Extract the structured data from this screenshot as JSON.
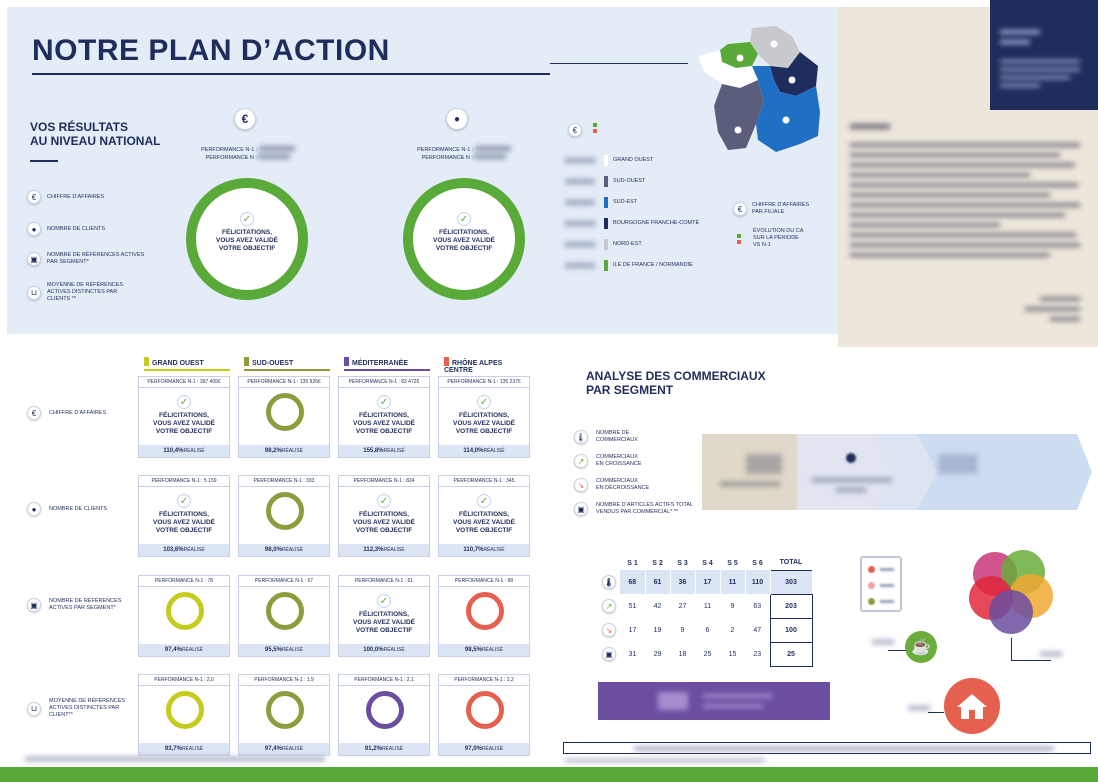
{
  "page": {
    "title": "NOTRE PLAN D’ACTION",
    "national": {
      "heading_line1": "VOS RÉSULTATS",
      "heading_line2": "AU NIVEAU NATIONAL",
      "indicators": [
        {
          "icon": "euro-icon",
          "label": "CHIFFRE D’AFFAIRES"
        },
        {
          "icon": "user-icon",
          "label": "NOMBRE DE CLIENTS"
        },
        {
          "icon": "box-icon",
          "label_line1": "NOMBRE DE RÉFÉRENCES ACTIVES",
          "label_line2": "PAR SEGMENT*"
        },
        {
          "icon": "basket-icon",
          "label_line1": "MOYENNE DE RÉFÉRENCES",
          "label_line2": "ACTIVES DISTINCTES PAR",
          "label_line3": "CLIENTS **"
        }
      ],
      "gauges": [
        {
          "icon": "euro-icon",
          "icon_glyph": "€",
          "line1": "PERFORMANCE N-1 :",
          "line2": "PERFORMANCE N :",
          "msg1": "FÉLICITATIONS,",
          "msg2": "VOUS AVEZ VALIDÉ",
          "msg3": "VOTRE OBJECTIF"
        },
        {
          "icon": "user-icon",
          "icon_glyph": "👤",
          "line1": "PERFORMANCE N-1 :",
          "line2": "PERFORMANCE N :",
          "msg1": "FÉLICITATIONS,",
          "msg2": "VOUS AVEZ VALIDÉ",
          "msg3": "VOTRE OBJECTIF"
        }
      ]
    },
    "map": {
      "legend": [
        {
          "label": "GRAND OUEST",
          "color": "#ffffff"
        },
        {
          "label": "SUD-OUEST",
          "color": "#5a5e7a"
        },
        {
          "label": "SUD-EST",
          "color": "#1f6fc4"
        },
        {
          "label": "BOURGOGNE FRANCHE-COMTÉ",
          "color": "#1f2d5c"
        },
        {
          "label": "NORD-EST",
          "color": "#c7c9cc"
        },
        {
          "label": "ILE DE FRANCE / NORMANDIE",
          "color": "#5aaa3a"
        }
      ],
      "side_legend": [
        {
          "label_line1": "CHIFFRE D’AFFAIRES",
          "label_line2": "PAR FILIALE"
        },
        {
          "label_line1": "ÉVOLUTION DU CA",
          "label_line2": "SUR LA PÉRIODE",
          "label_line3": "VS N-1"
        }
      ]
    },
    "regions": {
      "headers": [
        {
          "label": "GRAND OUEST",
          "color": "#c6cc1e"
        },
        {
          "label": "SUD-OUEST",
          "color": "#8d9d3e"
        },
        {
          "label": "MÉDITERRANÉE",
          "color": "#6b4ea0"
        },
        {
          "label": "RHÔNE ALPES CENTRE",
          "color": "#e5604e"
        }
      ],
      "row_labels": [
        {
          "icon": "euro-icon",
          "line1": "CHIFFRE D’AFFAIRES",
          "line2": ""
        },
        {
          "icon": "user-icon",
          "line1": "NOMBRE DE CLIENTS",
          "line2": ""
        },
        {
          "icon": "box-icon",
          "line1": "NOMBRE DE RÉFÉRENCES",
          "line2": "ACTIVES PAR SEGMENT*"
        },
        {
          "icon": "basket-icon",
          "line1": "MOYENNE DE RÉFÉRENCES",
          "line2": "ACTIVES DISTINCTES PAR",
          "line3": "CLIENT**"
        }
      ],
      "rows": [
        [
          {
            "perf": "PERFORMANCE N-1 : 397 405€",
            "status": "ok",
            "value": "110,4%",
            "suffix": "RÉALISÉ"
          },
          {
            "perf": "PERFORMANCE N-1 : 135 926€",
            "status": "ring",
            "color": "#8d9d3e",
            "value": "98,2%",
            "suffix": "RÉALISÉ"
          },
          {
            "perf": "PERFORMANCE N-1 : 83 472€",
            "status": "ok",
            "value": "155,8%",
            "suffix": "RÉALISÉ"
          },
          {
            "perf": "PERFORMANCE N-1 : 135 237€",
            "status": "ok",
            "value": "114,0%",
            "suffix": "RÉALISÉ"
          }
        ],
        [
          {
            "perf": "PERFORMANCE N-1 : 5 159",
            "status": "ok",
            "value": "103,6%",
            "suffix": "RÉALISÉ"
          },
          {
            "perf": "PERFORMANCE N-1 : 333",
            "status": "ring",
            "color": "#8d9d3e",
            "value": "98,0%",
            "suffix": "RÉALISÉ"
          },
          {
            "perf": "PERFORMANCE N-1 : 824",
            "status": "ok",
            "value": "112,3%",
            "suffix": "RÉALISÉ"
          },
          {
            "perf": "PERFORMANCE N-1 : 345",
            "status": "ok",
            "value": "110,7%",
            "suffix": "RÉALISÉ"
          }
        ],
        [
          {
            "perf": "PERFORMANCE N-1 : 78",
            "status": "ring",
            "color": "#c6cc1e",
            "value": "97,4%",
            "suffix": "RÉALISÉ"
          },
          {
            "perf": "PERFORMANCE N-1 : 67",
            "status": "ring",
            "color": "#8d9d3e",
            "value": "95,5%",
            "suffix": "RÉALISÉ"
          },
          {
            "perf": "PERFORMANCE N-1 : 61",
            "status": "ok",
            "value": "100,0%",
            "suffix": "RÉALISÉ"
          },
          {
            "perf": "PERFORMANCE N-1 : 68",
            "status": "ring",
            "color": "#e5604e",
            "value": "98,5%",
            "suffix": "RÉALISÉ"
          }
        ],
        [
          {
            "perf": "PERFORMANCE N-1 : 2,0",
            "status": "ring",
            "color": "#c6cc1e",
            "value": "93,7%",
            "suffix": "RÉALISÉ"
          },
          {
            "perf": "PERFORMANCE N-1 : 1,9",
            "status": "ring",
            "color": "#8d9d3e",
            "value": "97,4%",
            "suffix": "RÉALISÉ"
          },
          {
            "perf": "PERFORMANCE N-1 : 2,1",
            "status": "ring",
            "color": "#6b4ea0",
            "value": "91,2%",
            "suffix": "RÉALISÉ"
          },
          {
            "perf": "PERFORMANCE N-1 : 2,2",
            "status": "ring",
            "color": "#e5604e",
            "value": "97,0%",
            "suffix": "RÉALISÉ"
          }
        ]
      ],
      "congrats": {
        "line1": "FÉLICITATIONS,",
        "line2": "VOUS AVEZ VALIDÉ",
        "line3": "VOTRE OBJECTIF"
      }
    },
    "commerciaux": {
      "heading_line1": "ANALYSE DES COMMERCIAUX",
      "heading_line2": "PAR SEGMENT",
      "legend": [
        {
          "icon": "thermometer-icon",
          "line1": "NOMBRE DE",
          "line2": "COMMERCIAUX"
        },
        {
          "icon": "arrow-up-icon",
          "line1": "COMMERCIAUX",
          "line2": "EN CROISSANCE"
        },
        {
          "icon": "arrow-down-icon",
          "line1": "COMMERCIAUX",
          "line2": "EN DÉCROISSANCE"
        },
        {
          "icon": "box-icon",
          "line1": "NOMBRE D’ARTICLES ACTIFS TOTAL",
          "line2": "VENDUS PAR COMMERCIAL* **"
        }
      ],
      "table": {
        "headers": [
          "S 1",
          "S 2",
          "S 3",
          "S 4",
          "S 5",
          "S 6",
          "TOTAL"
        ],
        "rows": [
          {
            "icon": "thermometer-icon",
            "values": [
              "68",
              "61",
              "36",
              "17",
              "11",
              "110"
            ],
            "total": "303"
          },
          {
            "icon": "arrow-up-icon",
            "values": [
              "51",
              "42",
              "27",
              "11",
              "9",
              "63"
            ],
            "total": "203"
          },
          {
            "icon": "arrow-down-icon",
            "values": [
              "17",
              "19",
              "9",
              "6",
              "2",
              "47"
            ],
            "total": "100"
          },
          {
            "icon": "box-icon",
            "values": [
              "31",
              "29",
              "18",
              "25",
              "15",
              "23"
            ],
            "total": "25"
          }
        ]
      }
    }
  }
}
